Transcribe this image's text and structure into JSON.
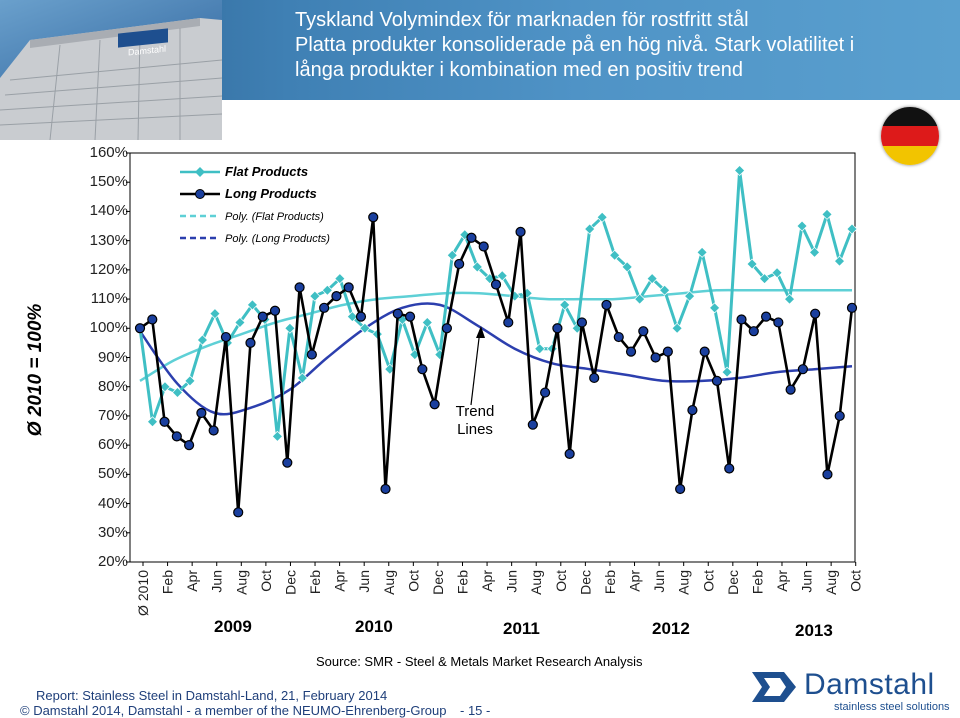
{
  "header": {
    "title_lines": [
      "Tyskland   Volymindex för marknaden för rostfritt stål",
      "Platta produkter konsoliderade på en hög nivå. Stark volatilitet i",
      "långa produkter i kombination med en positiv trend"
    ]
  },
  "colors": {
    "flat": "#3fbfc4",
    "long": "#000000",
    "long_marker": "#1a3f9e",
    "poly_flat": "#5ed0d6",
    "poly_long": "#2c3fae",
    "header_blue": "#3f80b4",
    "footer_blue": "#1f3f7a"
  },
  "chart_data": {
    "type": "line",
    "ylabel": "Ø 2010 = 100%",
    "y_ticks": [
      "160%",
      "150%",
      "140%",
      "130%",
      "120%",
      "110%",
      "100%",
      "90%",
      "80%",
      "70%",
      "60%",
      "50%",
      "40%",
      "30%",
      "20%"
    ],
    "ylim": [
      20,
      160
    ],
    "x_ticks": [
      "Ø 2010",
      "Feb",
      "Apr",
      "Jun",
      "Aug",
      "Oct",
      "Dec",
      "Feb",
      "Apr",
      "Jun",
      "Aug",
      "Oct",
      "Dec",
      "Feb",
      "Apr",
      "Jun",
      "Aug",
      "Oct",
      "Dec",
      "Feb",
      "Apr",
      "Jun",
      "Aug",
      "Oct",
      "Dec",
      "Feb",
      "Apr",
      "Jun",
      "Aug",
      "Oct"
    ],
    "years": [
      "2009",
      "2010",
      "2011",
      "2012",
      "2013"
    ],
    "legend": [
      "Flat Products",
      "Long Products",
      "Poly. (Flat Products)",
      "Poly. (Long Products)"
    ],
    "annotation": "Trend Lines",
    "grid": false,
    "series": [
      {
        "name": "Flat Products",
        "values": [
          100,
          68,
          80,
          78,
          82,
          96,
          105,
          95,
          102,
          108,
          103,
          63,
          100,
          83,
          111,
          113,
          117,
          104,
          100,
          98,
          86,
          103,
          91,
          102,
          91,
          125,
          132,
          121,
          117,
          118,
          111,
          112,
          93,
          93,
          108,
          100,
          134,
          138,
          125,
          121,
          110,
          117,
          113,
          100,
          111,
          126,
          107,
          85,
          154,
          122,
          117,
          119,
          110,
          135,
          126,
          139,
          123,
          134
        ]
      },
      {
        "name": "Long Products",
        "values": [
          100,
          103,
          68,
          63,
          60,
          71,
          65,
          97,
          37,
          95,
          104,
          106,
          54,
          114,
          91,
          107,
          111,
          114,
          104,
          138,
          45,
          105,
          104,
          86,
          74,
          100,
          122,
          131,
          128,
          115,
          102,
          133,
          67,
          78,
          100,
          57,
          102,
          83,
          108,
          97,
          92,
          99,
          90,
          92,
          45,
          72,
          92,
          82,
          52,
          103,
          99,
          104,
          102,
          79,
          86,
          105,
          50,
          70,
          107
        ]
      },
      {
        "name": "Poly. (Flat Products)",
        "values": [
          82,
          89,
          94,
          98,
          102,
          105,
          108,
          110,
          111,
          112,
          112,
          111,
          110,
          110,
          110,
          111,
          112,
          113,
          113,
          113,
          113,
          113
        ]
      },
      {
        "name": "Poly. (Long Products)",
        "values": [
          99,
          81,
          71,
          73,
          79,
          90,
          100,
          107,
          108,
          101,
          93,
          88,
          86,
          84,
          82,
          82,
          83,
          85,
          86,
          87
        ]
      }
    ]
  },
  "footer": {
    "source": "Source: SMR - Steel & Metals Market Research Analysis",
    "report": "Report: Stainless Steel in Damstahl-Land, 21, February 2014",
    "copyright": "© Damstahl 2014, Damstahl - a member of the NEUMO-Ehrenberg-Group",
    "page": "- 15 -",
    "logo_name": "Damstahl",
    "logo_tagline": "stainless steel solutions",
    "building_sign": "Damstahl"
  }
}
